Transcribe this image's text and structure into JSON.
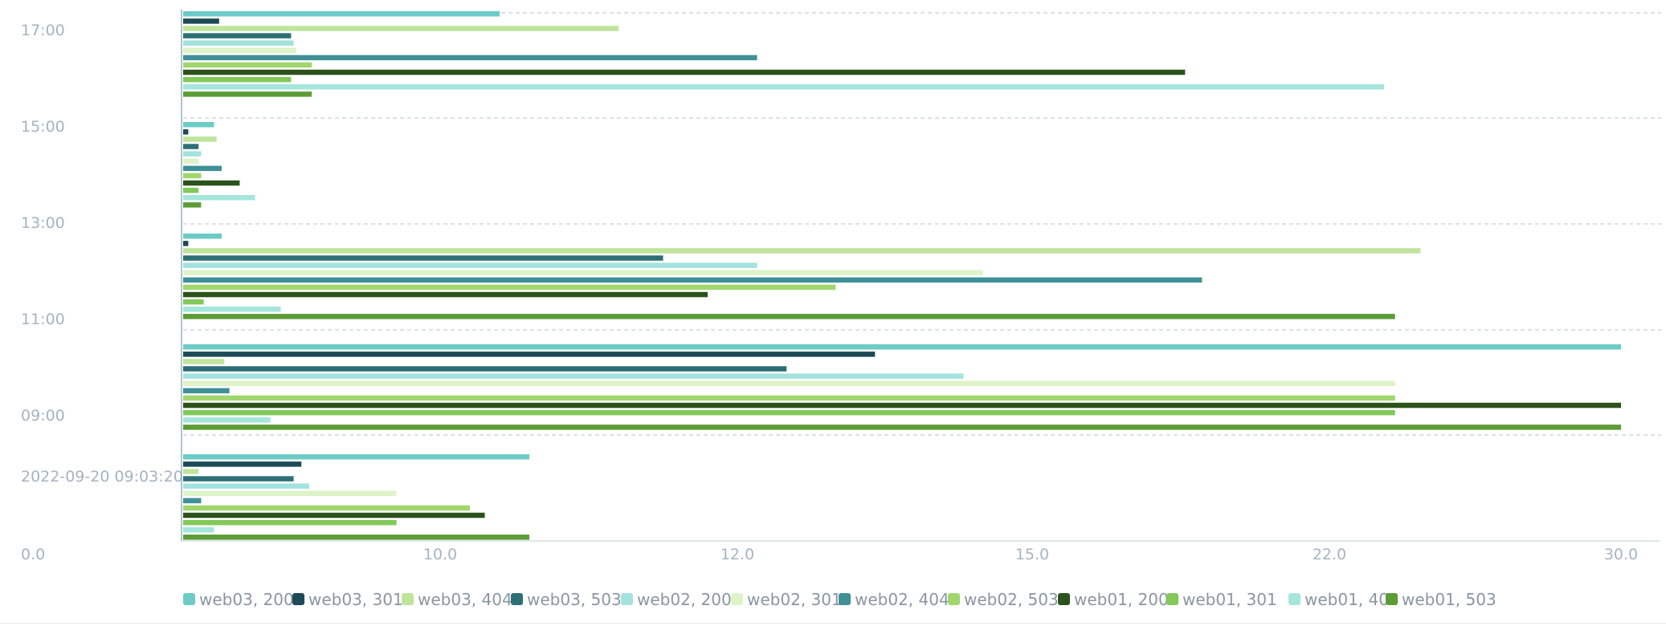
{
  "chart_data": {
    "type": "bar",
    "orientation": "horizontal",
    "title": "",
    "xlabel": "",
    "ylabel": "",
    "x_ticks": [
      "0.0",
      "10.0",
      "12.0",
      "15.0",
      "22.0",
      "30.0"
    ],
    "y_ticks": [
      "17:00",
      "15:00",
      "13:00",
      "11:00",
      "09:00",
      "2022-09-20 09:03:20"
    ],
    "grid": true,
    "legend_position": "bottom",
    "groups": [
      {
        "values": [
          10.4,
          1.4,
          11.2,
          4.2,
          4.3,
          4.4,
          12.2,
          5.0,
          18.6,
          4.2,
          23.5,
          5.0
        ]
      },
      {
        "values": [
          1.2,
          0.2,
          1.3,
          0.6,
          0.7,
          0.6,
          1.5,
          0.7,
          2.2,
          0.6,
          2.8,
          0.7
        ]
      },
      {
        "values": [
          1.5,
          0.2,
          24.5,
          11.5,
          12.2,
          14.5,
          19.0,
          13.0,
          11.8,
          0.8,
          3.8,
          23.8
        ]
      },
      {
        "values": [
          30.0,
          13.4,
          1.6,
          12.5,
          14.3,
          23.8,
          1.8,
          23.8,
          30.0,
          23.8,
          3.4,
          30.0
        ]
      },
      {
        "values": [
          10.6,
          4.6,
          0.6,
          4.3,
          4.9,
          8.3,
          0.7,
          10.2,
          10.3,
          8.3,
          1.2,
          10.6
        ]
      }
    ],
    "series": [
      {
        "name": "web03, 200",
        "color": "#6ccbc6"
      },
      {
        "name": "web03, 301",
        "color": "#1c4a56"
      },
      {
        "name": "web03, 404",
        "color": "#bfe49b"
      },
      {
        "name": "web03, 503",
        "color": "#2e6f76"
      },
      {
        "name": "web02, 200",
        "color": "#a3e2de"
      },
      {
        "name": "web02, 301",
        "color": "#def3c8"
      },
      {
        "name": "web02, 404",
        "color": "#3f9097"
      },
      {
        "name": "web02, 503",
        "color": "#a1d66e"
      },
      {
        "name": "web01, 200",
        "color": "#2b521a"
      },
      {
        "name": "web01, 301",
        "color": "#82c95a"
      },
      {
        "name": "web01, 404",
        "color": "#a5e6dc"
      },
      {
        "name": "web01, 503",
        "color": "#5c9c37"
      }
    ]
  }
}
